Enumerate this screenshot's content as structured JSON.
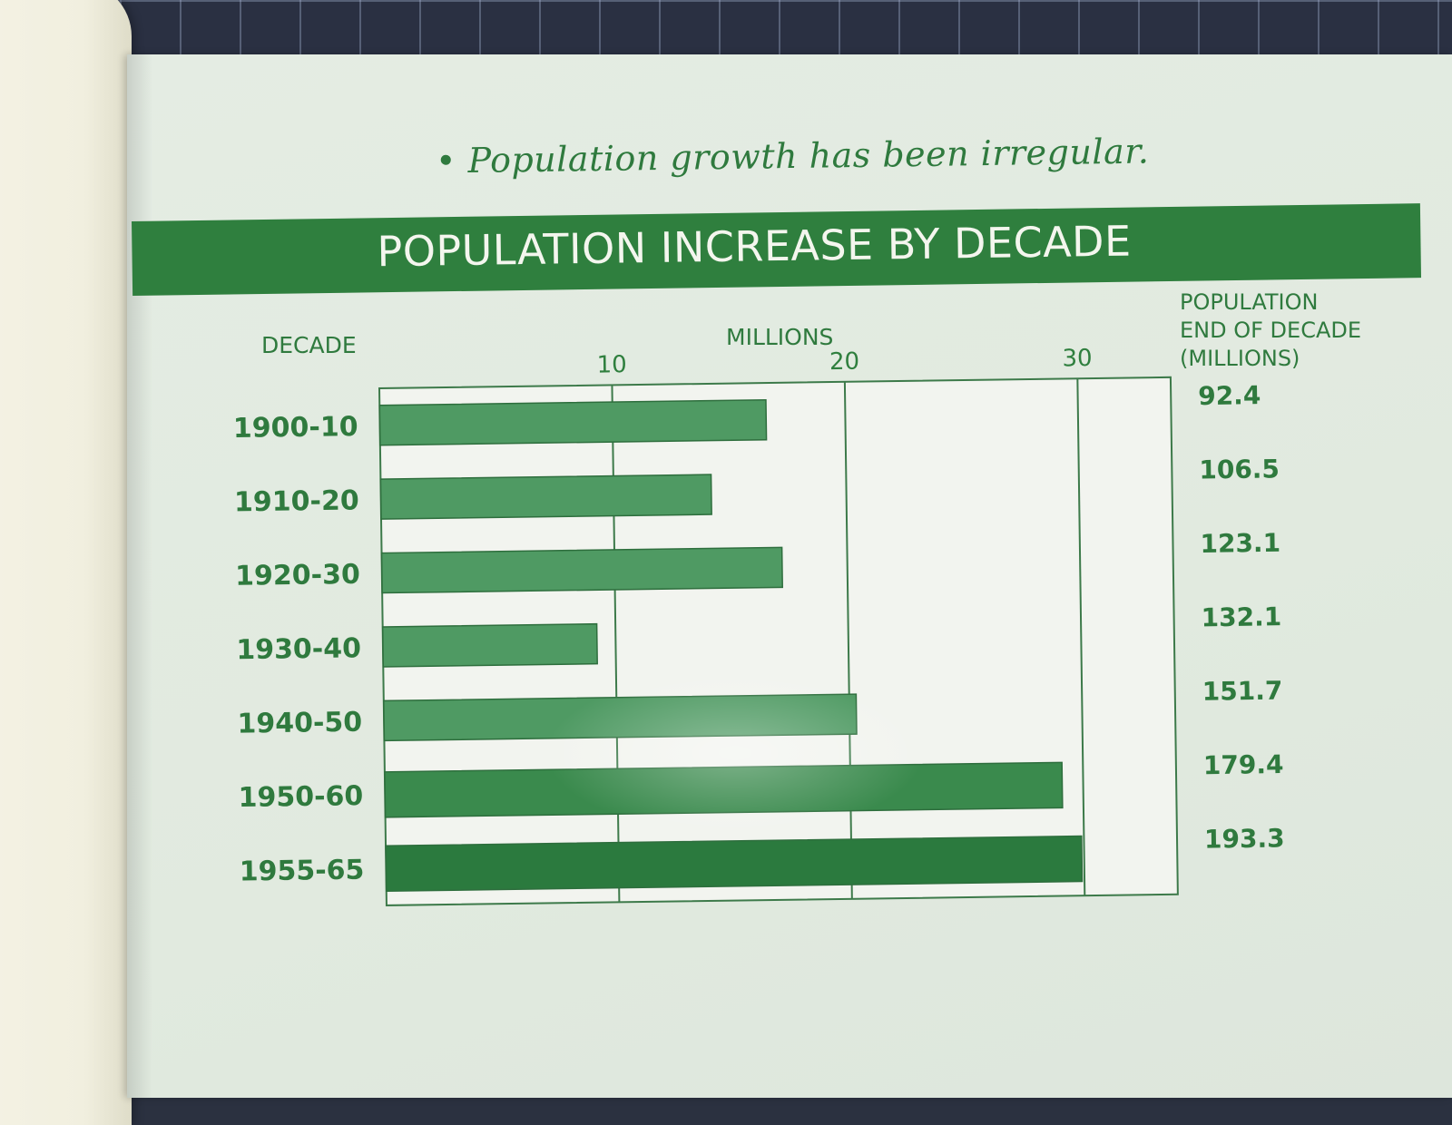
{
  "subtitle": "• Population growth has been irregular.",
  "colors": {
    "accent": "#2f7f3e",
    "bar_light": "#4f9a63",
    "bar_dark": "#2b7a3e",
    "plot_bg": "#f2f4ef"
  },
  "chart_data": {
    "type": "bar",
    "orientation": "horizontal",
    "title": "POPULATION INCREASE BY DECADE",
    "category_label": "DECADE",
    "xlabel": "MILLIONS",
    "xlim": [
      0,
      34
    ],
    "xticks": [
      10,
      20,
      30
    ],
    "grid": true,
    "categories": [
      "1900-10",
      "1910-20",
      "1920-30",
      "1930-40",
      "1940-50",
      "1950-60",
      "1955-65"
    ],
    "values": [
      16.6,
      14.2,
      17.2,
      9.2,
      20.3,
      29.1,
      29.9
    ],
    "right_column": {
      "header": [
        "POPULATION",
        "END OF DECADE",
        "(MILLIONS)"
      ],
      "values": [
        "92.4",
        "106.5",
        "123.1",
        "132.1",
        "151.7",
        "179.4",
        "193.3"
      ]
    }
  }
}
